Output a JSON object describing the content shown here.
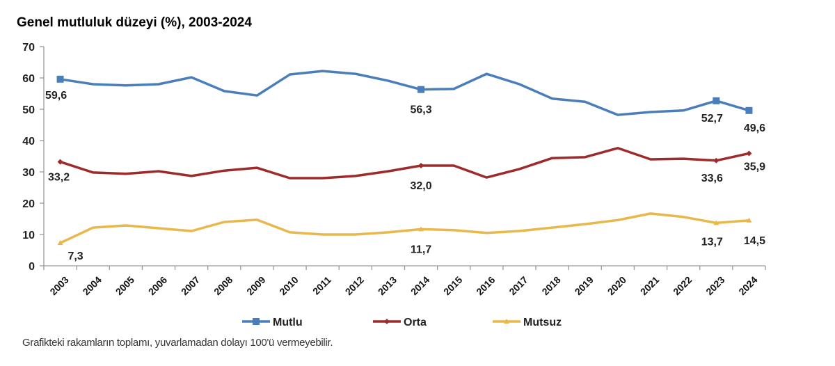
{
  "chart_data": {
    "type": "line",
    "title": "Genel mutluluk düzeyi (%), 2003-2024",
    "xlabel": "",
    "ylabel": "",
    "ylim": [
      0,
      70
    ],
    "yticks": [
      "0",
      "10",
      "20",
      "30",
      "40",
      "50",
      "60",
      "70"
    ],
    "grid": false,
    "legend_position": "bottom",
    "categories": [
      "2003",
      "2004",
      "2005",
      "2006",
      "2007",
      "2008",
      "2009",
      "2010",
      "2011",
      "2012",
      "2013",
      "2014",
      "2015",
      "2016",
      "2017",
      "2018",
      "2019",
      "2020",
      "2021",
      "2022",
      "2023",
      "2024"
    ],
    "series": [
      {
        "name": "Mutlu",
        "color": "#4A7EBB",
        "marker": "square",
        "values": [
          59.6,
          58.0,
          57.6,
          58.0,
          60.2,
          55.8,
          54.4,
          61.1,
          62.2,
          61.3,
          59.1,
          56.3,
          56.5,
          61.3,
          58.0,
          53.4,
          52.4,
          48.2,
          49.1,
          49.6,
          52.7,
          49.6
        ],
        "labeled": [
          {
            "index": 0,
            "text": "59,6"
          },
          {
            "index": 11,
            "text": "56,3"
          },
          {
            "index": 20,
            "text": "52,7"
          },
          {
            "index": 21,
            "text": "49,6"
          }
        ]
      },
      {
        "name": "Orta",
        "color": "#9E2A2B",
        "marker": "diamond",
        "values": [
          33.2,
          29.8,
          29.4,
          30.2,
          28.7,
          30.4,
          31.3,
          28.0,
          28.0,
          28.7,
          30.2,
          32.0,
          32.0,
          28.2,
          30.9,
          34.4,
          34.7,
          37.6,
          34.0,
          34.2,
          33.6,
          35.9
        ],
        "labeled": [
          {
            "index": 0,
            "text": "33,2"
          },
          {
            "index": 11,
            "text": "32,0"
          },
          {
            "index": 20,
            "text": "33,6"
          },
          {
            "index": 21,
            "text": "35,9"
          }
        ]
      },
      {
        "name": "Mutsuz",
        "color": "#E8B84A",
        "marker": "triangle",
        "values": [
          7.3,
          12.2,
          12.9,
          12.0,
          11.1,
          14.0,
          14.7,
          10.7,
          10.0,
          10.0,
          10.7,
          11.7,
          11.4,
          10.5,
          11.1,
          12.2,
          13.3,
          14.6,
          16.7,
          15.6,
          13.7,
          14.5
        ],
        "labeled": [
          {
            "index": 0,
            "text": "7,3"
          },
          {
            "index": 11,
            "text": "11,7"
          },
          {
            "index": 20,
            "text": "13,7"
          },
          {
            "index": 21,
            "text": "14,5"
          }
        ]
      }
    ]
  },
  "footnote": "Grafikteki rakamların toplamı, yuvarlamadan dolayı 100'ü vermeyebilir."
}
